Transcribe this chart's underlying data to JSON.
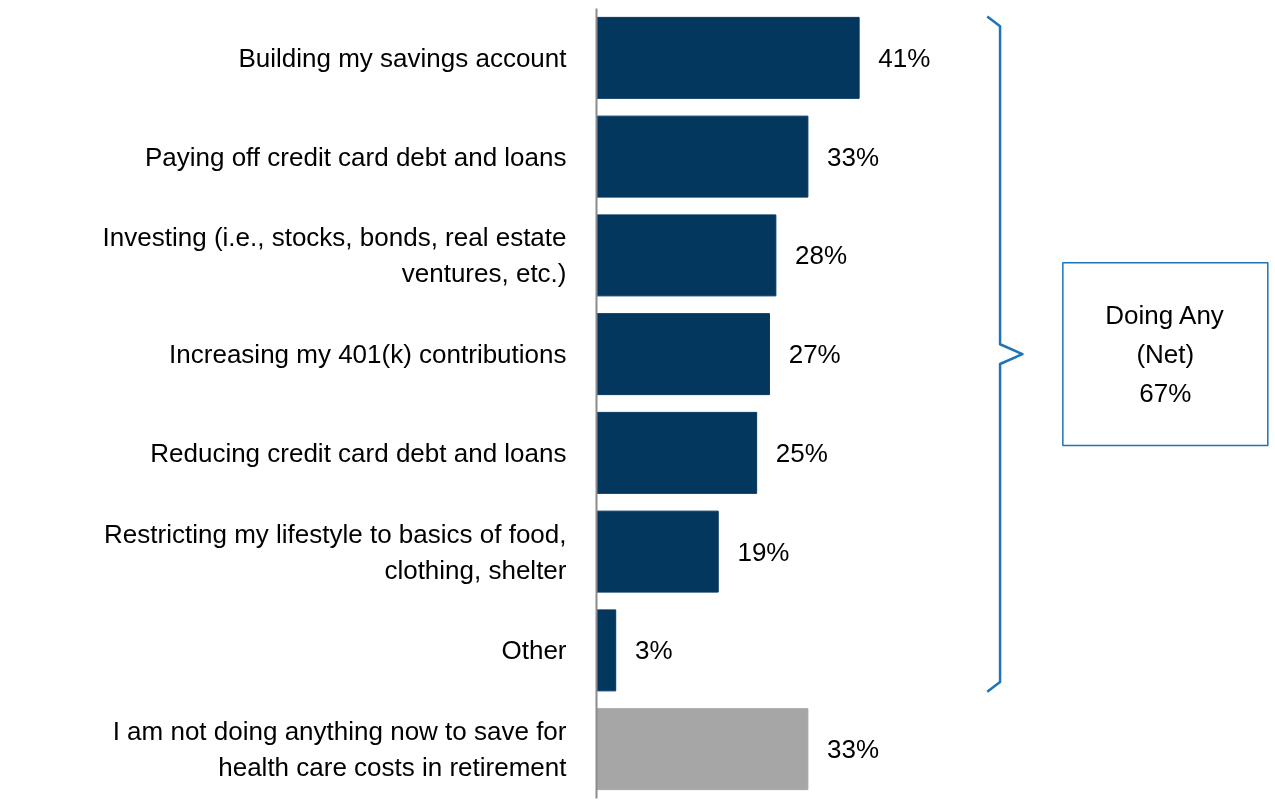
{
  "chart_data": {
    "type": "bar",
    "orientation": "horizontal",
    "categories": [
      "Building my savings account",
      "Paying off credit card debt and loans",
      "Investing (i.e., stocks, bonds, real estate ventures, etc.)",
      "Increasing my 401(k) contributions",
      "Reducing credit card debt and loans",
      "Restricting my lifestyle to basics of food, clothing, shelter",
      "Other",
      "I am not doing anything now to save for health care costs in retirement"
    ],
    "values": [
      41,
      33,
      28,
      27,
      25,
      19,
      3,
      33
    ],
    "colors": [
      "#04375e",
      "#04375e",
      "#04375e",
      "#04375e",
      "#04375e",
      "#04375e",
      "#04375e",
      "#a6a6a6"
    ],
    "value_labels": [
      "41%",
      "33%",
      "28%",
      "27%",
      "25%",
      "19%",
      "3%",
      "33%"
    ],
    "annotations": [
      "Doing Any\n(Net)\n67%"
    ]
  }
}
